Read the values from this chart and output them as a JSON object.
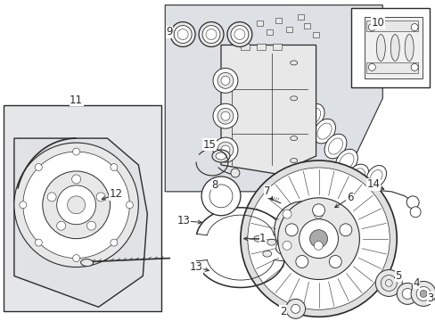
{
  "bg_color": "#ffffff",
  "fig_bg": "#ffffff",
  "line_color": "#2a2a2a",
  "fill_light": "#e8e8e8",
  "fill_mid": "#d0d0d0",
  "fill_white": "#ffffff",
  "caliper_bg": "#dde0e4",
  "box11_bg": "#e4e6e8",
  "box7_bg": "#f0f0f0",
  "font_size": 8.5
}
